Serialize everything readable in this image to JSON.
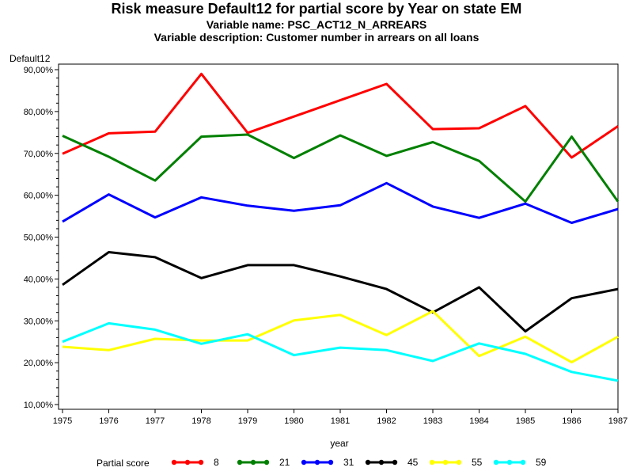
{
  "chart_data": {
    "type": "line",
    "title": "Risk measure Default12 for partial score by Year on state EM",
    "subtitle1": "Variable name: PSC_ACT12_N_ARREARS",
    "subtitle2": "Variable description: Customer number in arrears on all loans",
    "ylabel": "Default12",
    "xlabel": "year",
    "legend_title": "Partial score",
    "legend_position": "bottom",
    "grid": false,
    "x": [
      "1975",
      "1976",
      "1977",
      "1978",
      "1979",
      "1980",
      "1981",
      "1982",
      "1983",
      "1984",
      "1985",
      "1986",
      "1987"
    ],
    "ylim": [
      0.1,
      0.9
    ],
    "yticks": [
      "10,00%",
      "20,00%",
      "30,00%",
      "40,00%",
      "50,00%",
      "60,00%",
      "70,00%",
      "80,00%",
      "90,00%"
    ],
    "series": [
      {
        "name": "8",
        "color": "#ff0000",
        "values": [
          0.699,
          0.748,
          0.752,
          0.89,
          0.749,
          0.788,
          0.827,
          0.866,
          0.758,
          0.76,
          0.813,
          0.69,
          0.765
        ]
      },
      {
        "name": "21",
        "color": "#008000",
        "values": [
          0.742,
          0.692,
          0.635,
          0.74,
          0.745,
          0.689,
          0.743,
          0.694,
          0.727,
          0.682,
          0.585,
          0.74,
          0.585
        ]
      },
      {
        "name": "31",
        "color": "#0000ff",
        "values": [
          0.537,
          0.602,
          0.547,
          0.595,
          0.575,
          0.563,
          0.576,
          0.629,
          0.573,
          0.546,
          0.58,
          0.534,
          0.567
        ]
      },
      {
        "name": "45",
        "color": "#000000",
        "values": [
          0.386,
          0.464,
          0.452,
          0.402,
          0.433,
          0.433,
          0.406,
          0.376,
          0.32,
          0.38,
          0.275,
          0.354,
          0.376
        ]
      },
      {
        "name": "55",
        "color": "#ffff00",
        "values": [
          0.238,
          0.23,
          0.257,
          0.253,
          0.253,
          0.301,
          0.314,
          0.266,
          0.323,
          0.216,
          0.262,
          0.201,
          0.262
        ]
      },
      {
        "name": "59",
        "color": "#00ffff",
        "values": [
          0.25,
          0.294,
          0.279,
          0.245,
          0.268,
          0.218,
          0.236,
          0.23,
          0.204,
          0.246,
          0.221,
          0.178,
          0.157
        ]
      }
    ]
  }
}
